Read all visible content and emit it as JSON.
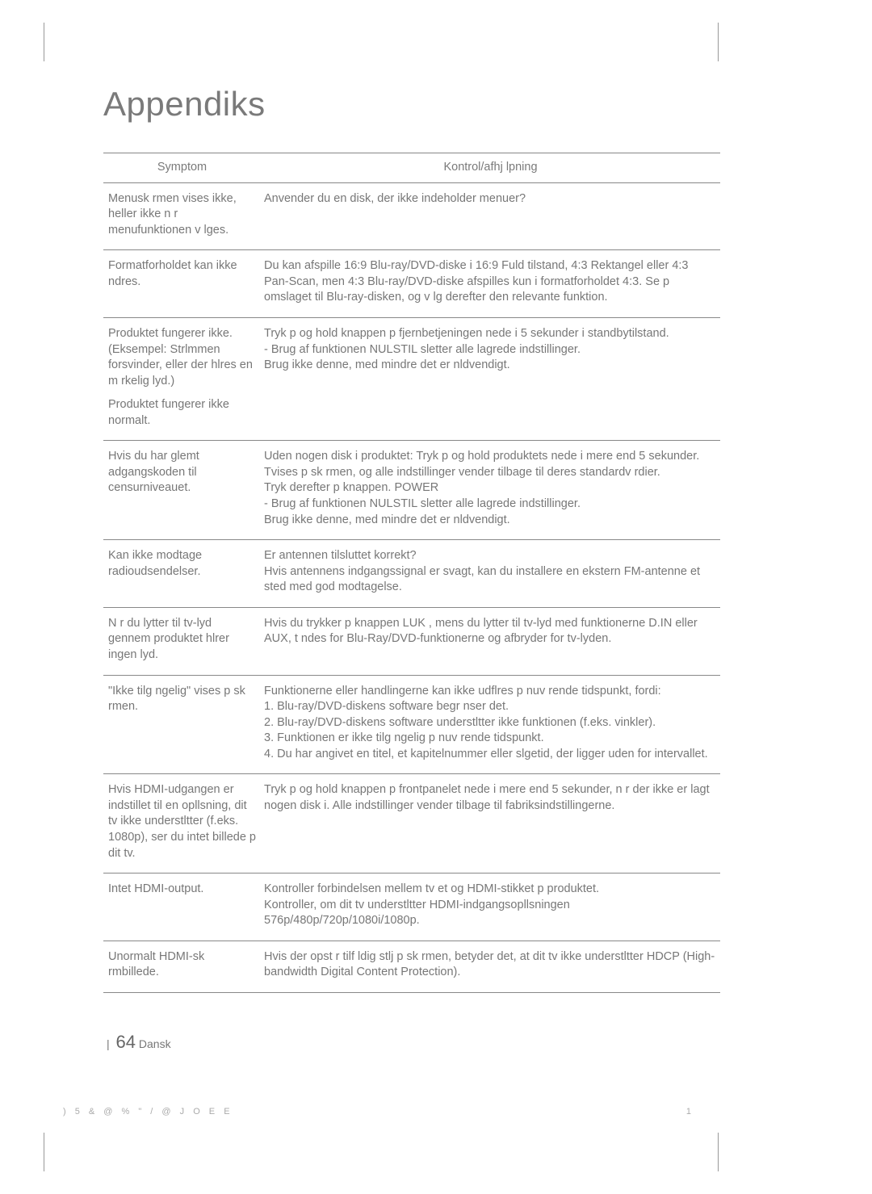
{
  "title": "Appendiks",
  "table": {
    "headers": {
      "symptom": "Symptom",
      "solution": "Kontrol/afhj lpning"
    },
    "rows": [
      {
        "symptom": "Menusk rmen vises ikke, heller ikke n r menufunktionen v lges.",
        "solution": [
          "Anvender du en disk, der ikke indeholder menuer?"
        ]
      },
      {
        "symptom": "Formatforholdet kan ikke ndres.",
        "solution": [
          "Du kan afspille 16:9 Blu-ray/DVD-diske i 16:9 Fuld tilstand, 4:3 Rektangel eller 4:3 Pan-Scan, men 4:3 Blu-ray/DVD-diske afspilles kun i formatforholdet 4:3. Se p  omslaget til Blu-ray-disken, og v lg derefter den relevante funktion."
        ]
      },
      {
        "symptom": "Produktet fungerer ikke. (Eksempel: Strlmmen forsvinder, eller der hlres en m rkelig lyd.)\nProduktet fungerer ikke normalt.",
        "solution": [
          "Tryk p  og hold knappen p  fjernbetjeningen nede i 5 sekunder i standbytilstand.",
          "- Brug af funktionen NULSTIL sletter alle lagrede indstillinger.",
          "  Brug ikke denne, med mindre det er nldvendigt."
        ]
      },
      {
        "symptom": "Hvis du har glemt adgangskoden til censurniveauet.",
        "solution": [
          "Uden nogen disk i produktet: Tryk p  og hold produktets nede i mere end 5 sekunder. Tvises p  sk rmen, og alle indstillinger vender tilbage til deres standardv rdier.",
          "Tryk derefter p  knappen. POWER",
          "- Brug af funktionen NULSTIL sletter alle lagrede indstillinger.",
          "  Brug ikke denne, med mindre det er nldvendigt."
        ]
      },
      {
        "symptom": "Kan ikke modtage radioudsendelser.",
        "solution": [
          "Er antennen tilsluttet korrekt?",
          "Hvis antennens indgangssignal er svagt, kan du installere en ekstern FM-antenne et sted med god modtagelse."
        ]
      },
      {
        "symptom": "N r du lytter til tv-lyd gennem produktet hlrer ingen lyd.",
        "solution": [
          "Hvis du trykker p  knappen LUK , mens du lytter til tv-lyd med funktionerne D.IN eller AUX, t ndes for Blu-Ray/DVD-funktionerne og afbryder for tv-lyden."
        ]
      },
      {
        "symptom": "\"Ikke tilg ngelig\" vises p  sk rmen.",
        "solution": [
          "Funktionerne eller handlingerne kan ikke udflres p  nuv rende tidspunkt, fordi:",
          "1. Blu-ray/DVD-diskens software begr nser det.",
          "2. Blu-ray/DVD-diskens software understltter ikke funktionen (f.eks. vinkler).",
          "3. Funktionen er ikke tilg ngelig p  nuv rende tidspunkt.",
          "4. Du har angivet en titel, et kapitelnummer eller slgetid, der ligger uden for intervallet."
        ]
      },
      {
        "symptom": "Hvis HDMI-udgangen er indstillet til en opllsning, dit tv ikke understltter (f.eks. 1080p), ser du intet billede p  dit tv.",
        "solution": [
          "Tryk p  og hold knappen p  frontpanelet nede i mere end 5 sekunder, n r der ikke er lagt nogen disk i. Alle indstillinger vender tilbage til fabriksindstillingerne."
        ]
      },
      {
        "symptom": "Intet HDMI-output.",
        "solution": [
          "Kontroller forbindelsen mellem tv et og HDMI-stikket p  produktet.",
          "Kontroller, om dit tv understltter HDMI-indgangsopllsningen 576p/480p/720p/1080i/1080p."
        ]
      },
      {
        "symptom": "Unormalt HDMI-sk rmbillede.",
        "solution": [
          "Hvis der opst r tilf ldig stlj p  sk rmen, betyder det, at dit tv ikke understltter HDCP (High-bandwidth Digital Content Protection)."
        ]
      }
    ]
  },
  "footer": {
    "page_number": "64",
    "lang": "Dansk",
    "separator": "|"
  },
  "bottom_left": ") 5 &      @ % \" / @      J O E E",
  "bottom_right": "1"
}
